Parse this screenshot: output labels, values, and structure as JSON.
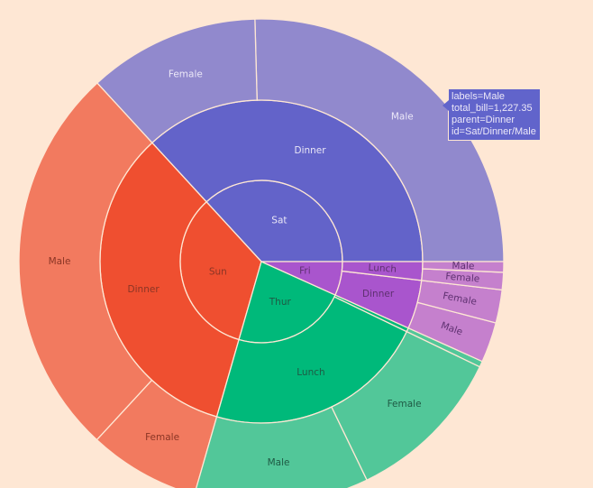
{
  "chart_data": {
    "type": "sunburst",
    "title": "",
    "value_field": "total_bill",
    "center": [
      290,
      290
    ],
    "radii": [
      0,
      90,
      179,
      269
    ],
    "start_angle_deg": 0,
    "direction": "counterclockwise",
    "colors": {
      "Sat": {
        "inner": "#6363c9",
        "mid": "#6363c9",
        "outer": "#9189cd"
      },
      "Sun": {
        "inner": "#ef4f30",
        "mid": "#ef4f30",
        "outer": "#f27a5f"
      },
      "Thur": {
        "inner": "#00b97a",
        "mid": "#00b97a",
        "outer": "#52c799"
      },
      "Fri": {
        "inner": "#a955cd",
        "mid": "#a955cd",
        "outer": "#c580cd"
      }
    },
    "label_colors": {
      "Sat": "#e9e6f6",
      "Sun": "#8a3525",
      "Thur": "#1e5a44",
      "Fri": "#5e3070"
    },
    "days": [
      {
        "label": "Sat",
        "value": 1778.4,
        "children": [
          {
            "label": "Dinner",
            "value": 1778.4,
            "children": [
              {
                "label": "Male",
                "value": 1227.35
              },
              {
                "label": "Female",
                "value": 551.05
              }
            ]
          }
        ]
      },
      {
        "label": "Sun",
        "value": 1627.16,
        "children": [
          {
            "label": "Dinner",
            "value": 1627.16,
            "children": [
              {
                "label": "Male",
                "value": 1269.46
              },
              {
                "label": "Female",
                "value": 357.7
              }
            ]
          }
        ]
      },
      {
        "label": "Thur",
        "value": 1096.33,
        "children": [
          {
            "label": "Lunch",
            "value": 1077.55,
            "children": [
              {
                "label": "Male",
                "value": 561.44
              },
              {
                "label": "Female",
                "value": 516.11
              }
            ]
          },
          {
            "label": "Dinner",
            "value": 18.78,
            "hide_label": true,
            "children": [
              {
                "label": "Female",
                "value": 18.78,
                "hide_label": true
              }
            ]
          }
        ]
      },
      {
        "label": "Fri",
        "value": 325.88,
        "children": [
          {
            "label": "Dinner",
            "value": 235.96,
            "children": [
              {
                "label": "Male",
                "value": 129.46
              },
              {
                "label": "Female",
                "value": 106.5
              }
            ]
          },
          {
            "label": "Lunch",
            "value": 89.92,
            "children": [
              {
                "label": "Female",
                "value": 55.76
              },
              {
                "label": "Male",
                "value": 34.16,
                "small": true
              }
            ]
          }
        ]
      }
    ]
  },
  "tooltip": {
    "line1": "labels=Male",
    "line2": "total_bill=1,227.35",
    "line3": "parent=Dinner",
    "line4": "id=Sat/Dinner/Male"
  }
}
